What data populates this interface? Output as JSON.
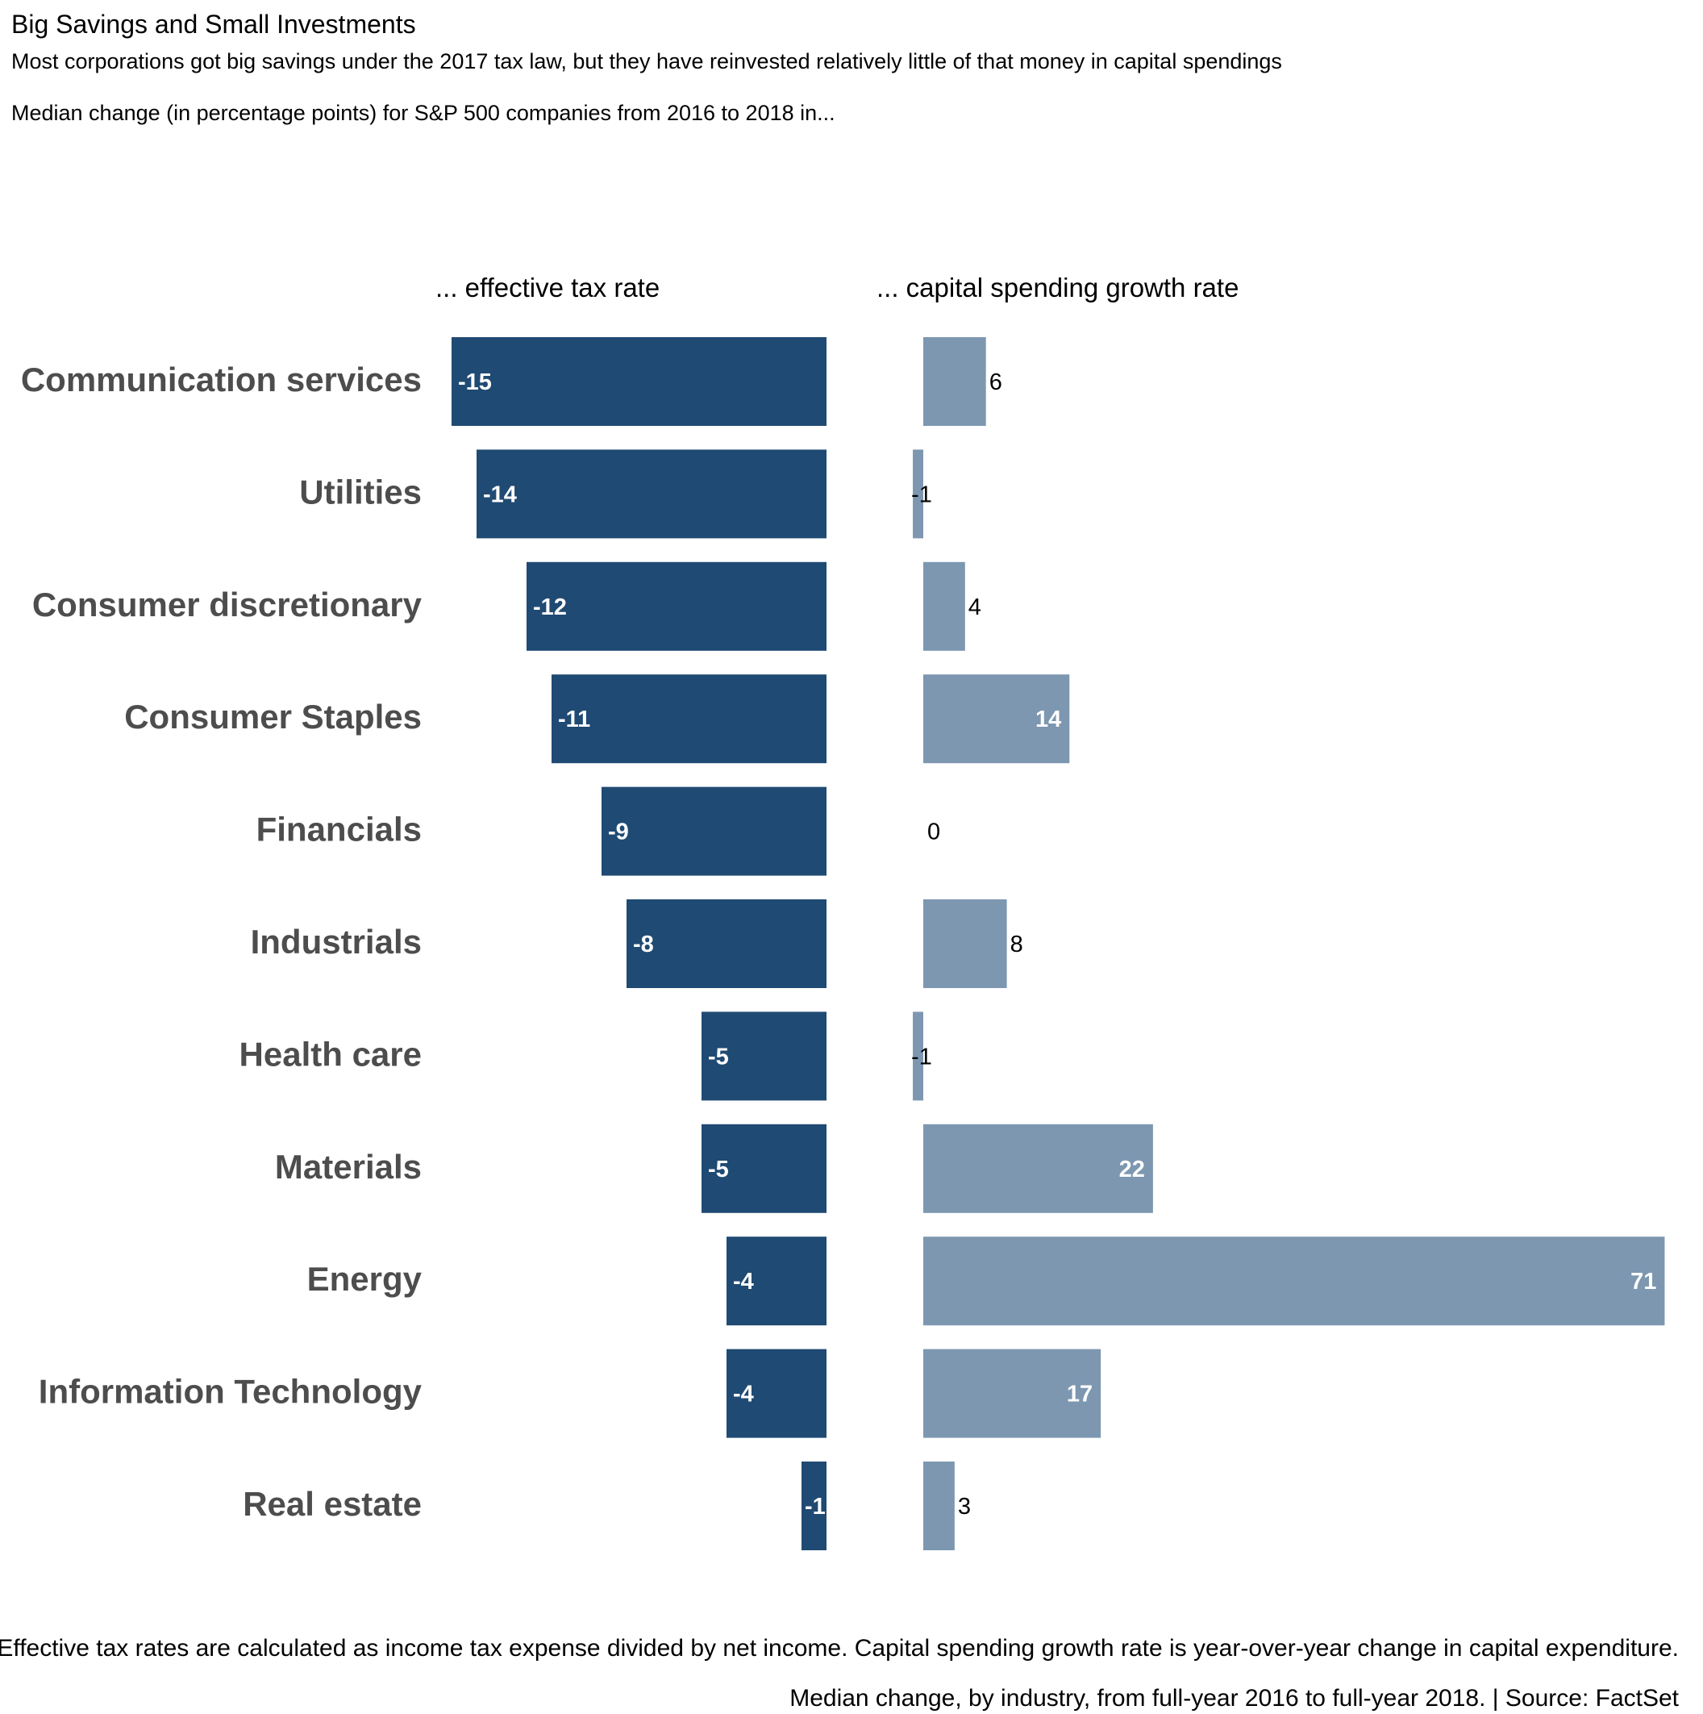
{
  "header": {
    "title": "Big Savings and Small Investments",
    "subtitle": "Most corporations got big savings under the 2017 tax law, but they have reinvested relatively little of that money in capital spendings",
    "caption": "Median change (in percentage points) for S&P 500 companies from 2016 to 2018  in..."
  },
  "footer": {
    "note_line1": "Effective tax rates are calculated as income tax expense divided by net income. Capital spending growth rate is year-over-year change in capital expenditure.",
    "note_line2": "Median change, by industry, from full-year 2016 to full-year 2018. | Source: FactSet"
  },
  "chart_data": {
    "type": "bar",
    "orientation": "horizontal",
    "categories": [
      "Communication services",
      "Utilities",
      "Consumer discretionary",
      "Consumer Staples",
      "Financials",
      "Industrials",
      "Health care",
      "Materials",
      "Energy",
      "Information Technology",
      "Real estate"
    ],
    "series": [
      {
        "name": "... effective tax rate",
        "values": [
          -15,
          -14,
          -12,
          -11,
          -9,
          -8,
          -5,
          -5,
          -4,
          -4,
          -1
        ],
        "color": "#1f4a73"
      },
      {
        "name": "... capital spending growth rate",
        "values": [
          6,
          -1,
          4,
          14,
          0,
          8,
          -1,
          22,
          71,
          17,
          3
        ],
        "color": "#7d97b1"
      }
    ],
    "label_color_inside": "#ffffff",
    "label_color_outside": "#000000",
    "category_label_color": "#4d4d4d",
    "grid": false,
    "legend": "panel headers"
  }
}
